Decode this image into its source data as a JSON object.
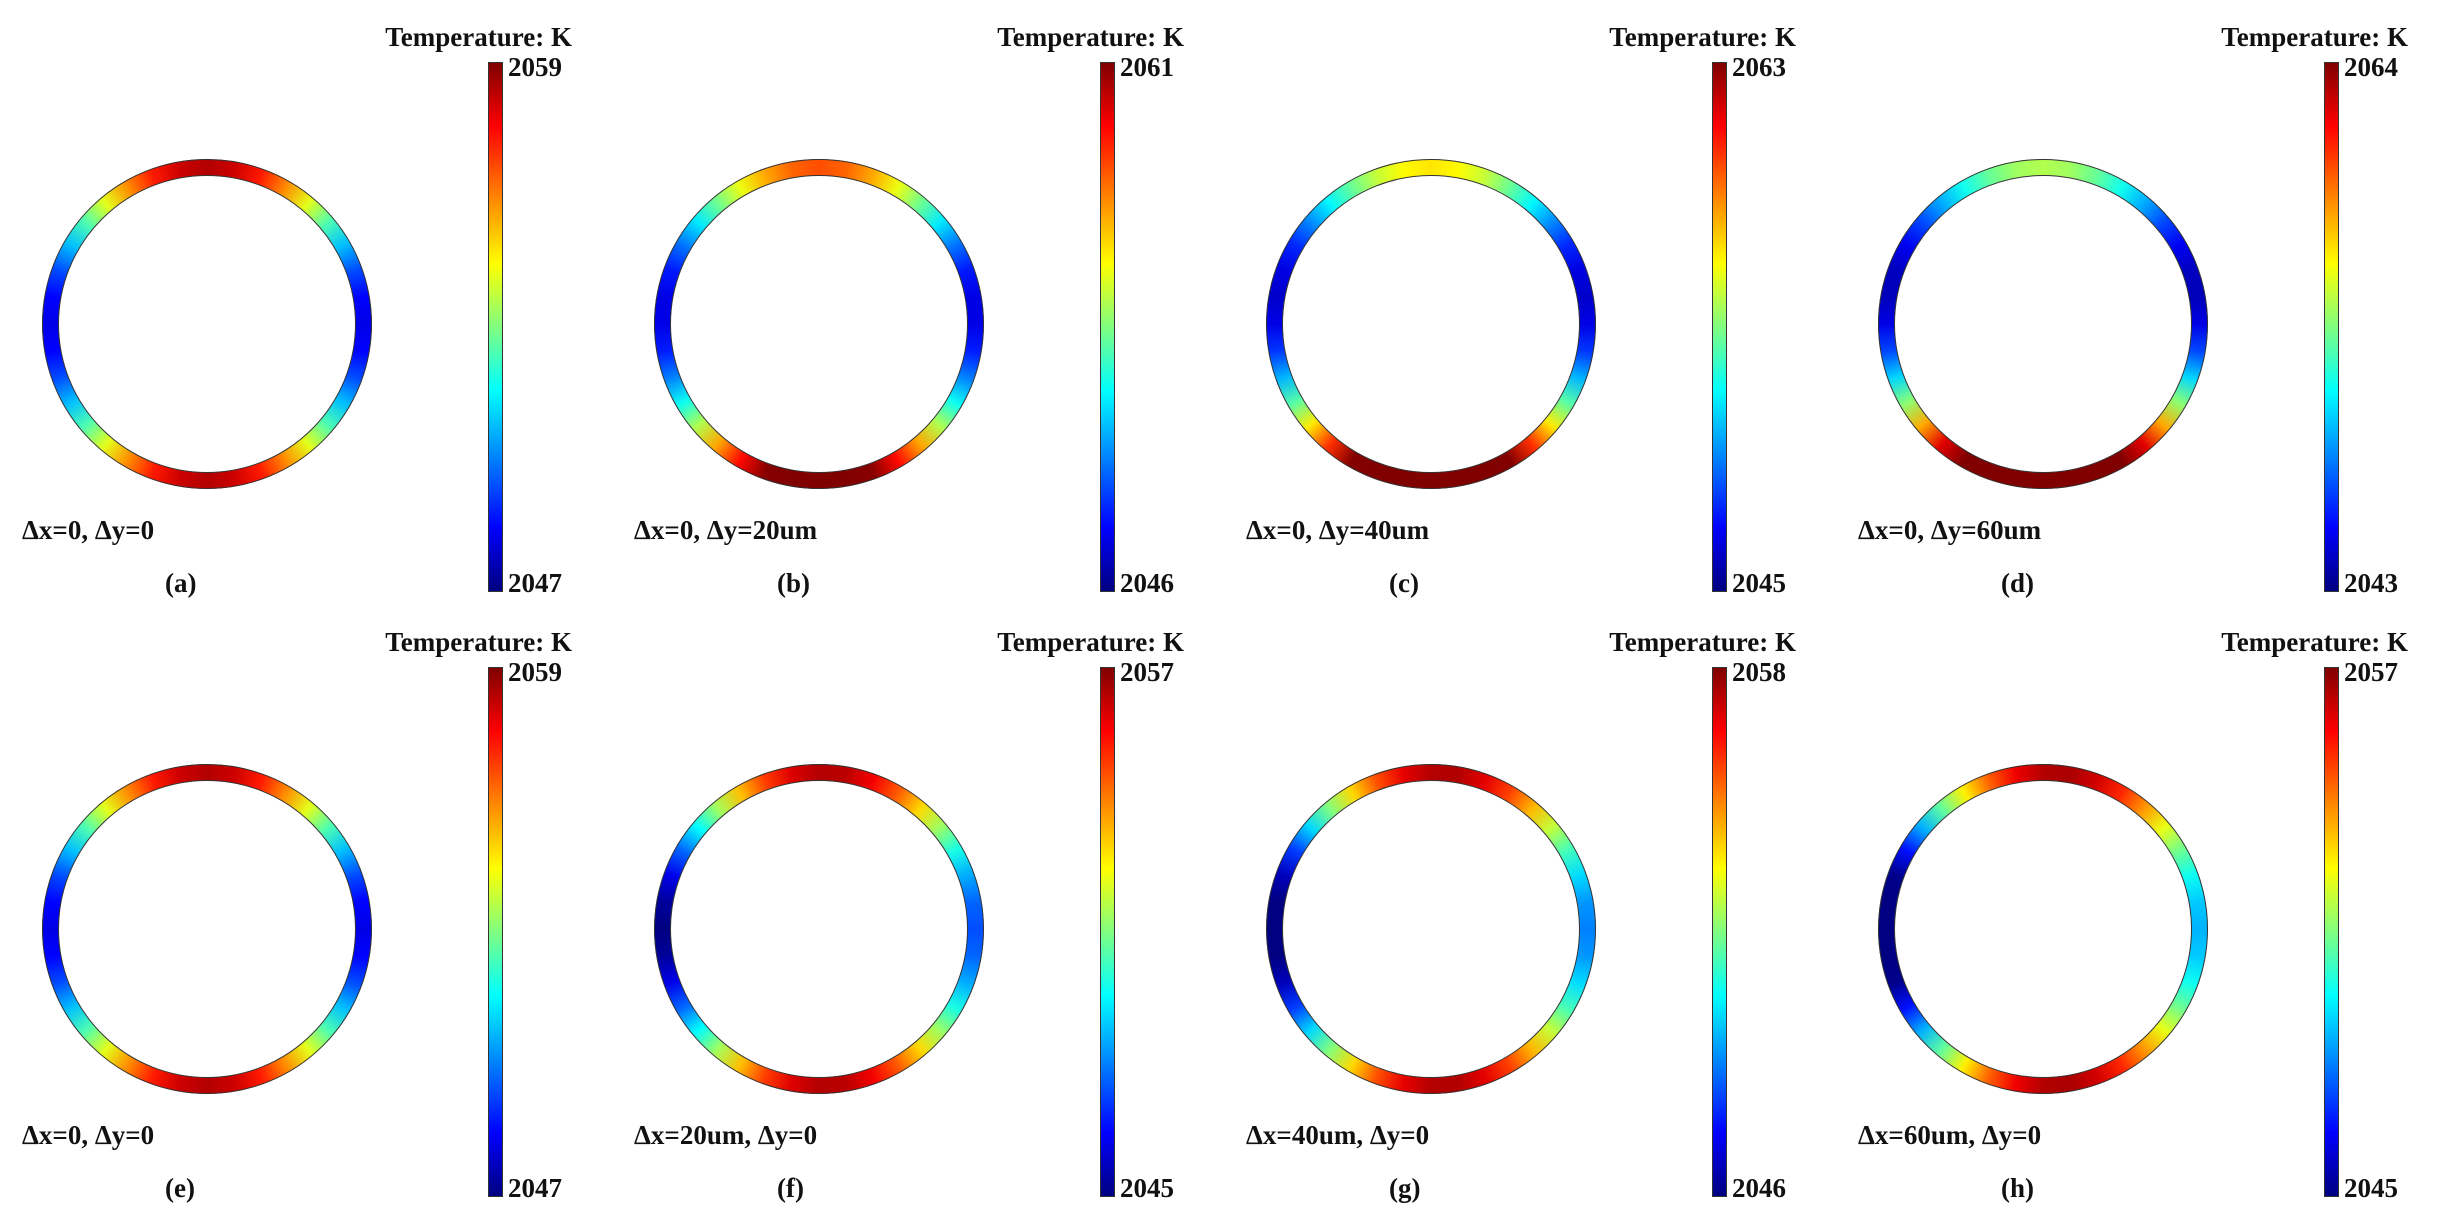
{
  "panels": [
    {
      "colorbar_title": "Temperature: K",
      "max": 2059,
      "min": 2047,
      "offset": "Δx=0, Δy=0",
      "caption": "(a)"
    },
    {
      "colorbar_title": "Temperature: K",
      "max": 2061,
      "min": 2046,
      "offset": "Δx=0, Δy=20um",
      "caption": "(b)"
    },
    {
      "colorbar_title": "Temperature: K",
      "max": 2063,
      "min": 2045,
      "offset": "Δx=0, Δy=40um",
      "caption": "(c)"
    },
    {
      "colorbar_title": "Temperature: K",
      "max": 2064,
      "min": 2043,
      "offset": "Δx=0, Δy=60um",
      "caption": "(d)"
    },
    {
      "colorbar_title": "Temperature: K",
      "max": 2059,
      "min": 2047,
      "offset": "Δx=0, Δy=0",
      "caption": "(e)"
    },
    {
      "colorbar_title": "Temperature: K",
      "max": 2057,
      "min": 2045,
      "offset": "Δx=20um, Δy=0",
      "caption": "(f)"
    },
    {
      "colorbar_title": "Temperature: K",
      "max": 2058,
      "min": 2046,
      "offset": "Δx=40um, Δy=0",
      "caption": "(g)"
    },
    {
      "colorbar_title": "Temperature: K",
      "max": 2057,
      "min": 2045,
      "offset": "Δx=60um, Δy=0",
      "caption": "(h)"
    }
  ]
}
